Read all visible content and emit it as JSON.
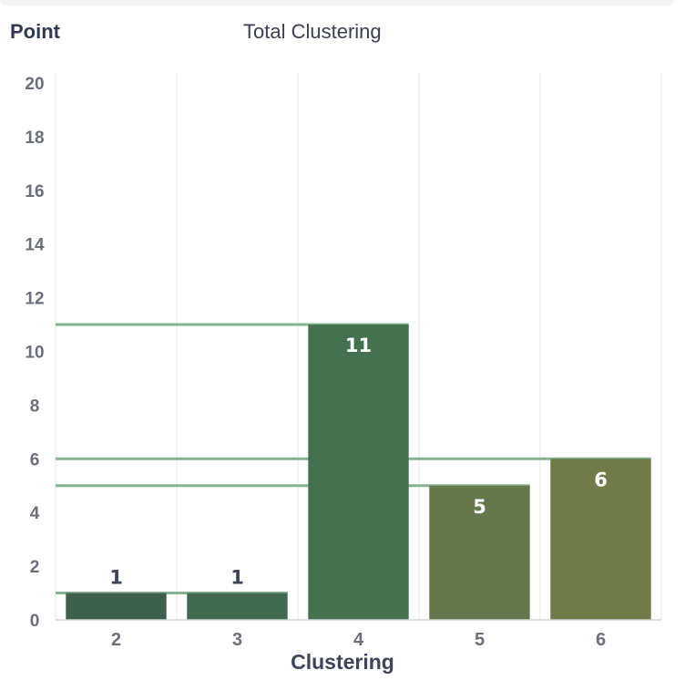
{
  "chart_data": {
    "type": "bar",
    "title": "Total Clustering",
    "ylabel": "Point",
    "xlabel": "Clustering",
    "categories": [
      "2",
      "3",
      "4",
      "5",
      "6"
    ],
    "values": [
      1,
      1,
      11,
      5,
      6
    ],
    "ylim": [
      0,
      20
    ],
    "yticks": [
      0,
      2,
      4,
      6,
      8,
      10,
      12,
      14,
      16,
      18,
      20
    ],
    "grid": "vertical",
    "colors": [
      "#3f5f4d",
      "#3f6a50",
      "#447250",
      "#64784c",
      "#717b4a"
    ],
    "reference_line_color": "#86b390",
    "label_colors": {
      "outside": "#3d4557",
      "inside": "#ffffff"
    }
  }
}
